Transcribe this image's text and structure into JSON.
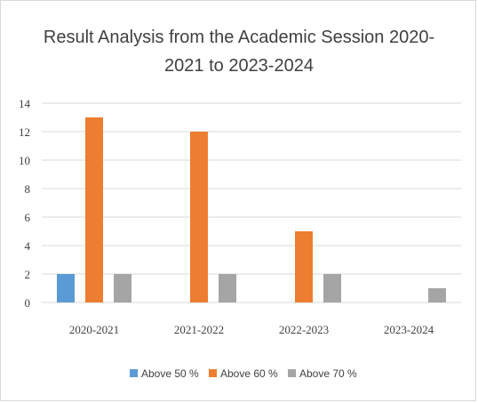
{
  "chart_data": {
    "type": "bar",
    "title": "Result Analysis from the Academic Session 2020-2021 to 2023-2024",
    "title_lines": [
      "Result Analysis from the Academic Session 2020-",
      "2021 to 2023-2024"
    ],
    "categories": [
      "2020-2021",
      "2021-2022",
      "2022-2023",
      "2023-2024"
    ],
    "series": [
      {
        "name": "Above 50 %",
        "color": "#5b9bd5",
        "values": [
          2,
          0,
          0,
          0
        ]
      },
      {
        "name": "Above 60 %",
        "color": "#ed7d31",
        "values": [
          13,
          12,
          5,
          0
        ]
      },
      {
        "name": "Above 70 %",
        "color": "#a5a5a5",
        "values": [
          2,
          2,
          2,
          1
        ]
      }
    ],
    "y_ticks": [
      0,
      2,
      4,
      6,
      8,
      10,
      12,
      14
    ],
    "ylim": [
      0,
      14
    ],
    "grid": true,
    "legend_position": "bottom"
  }
}
